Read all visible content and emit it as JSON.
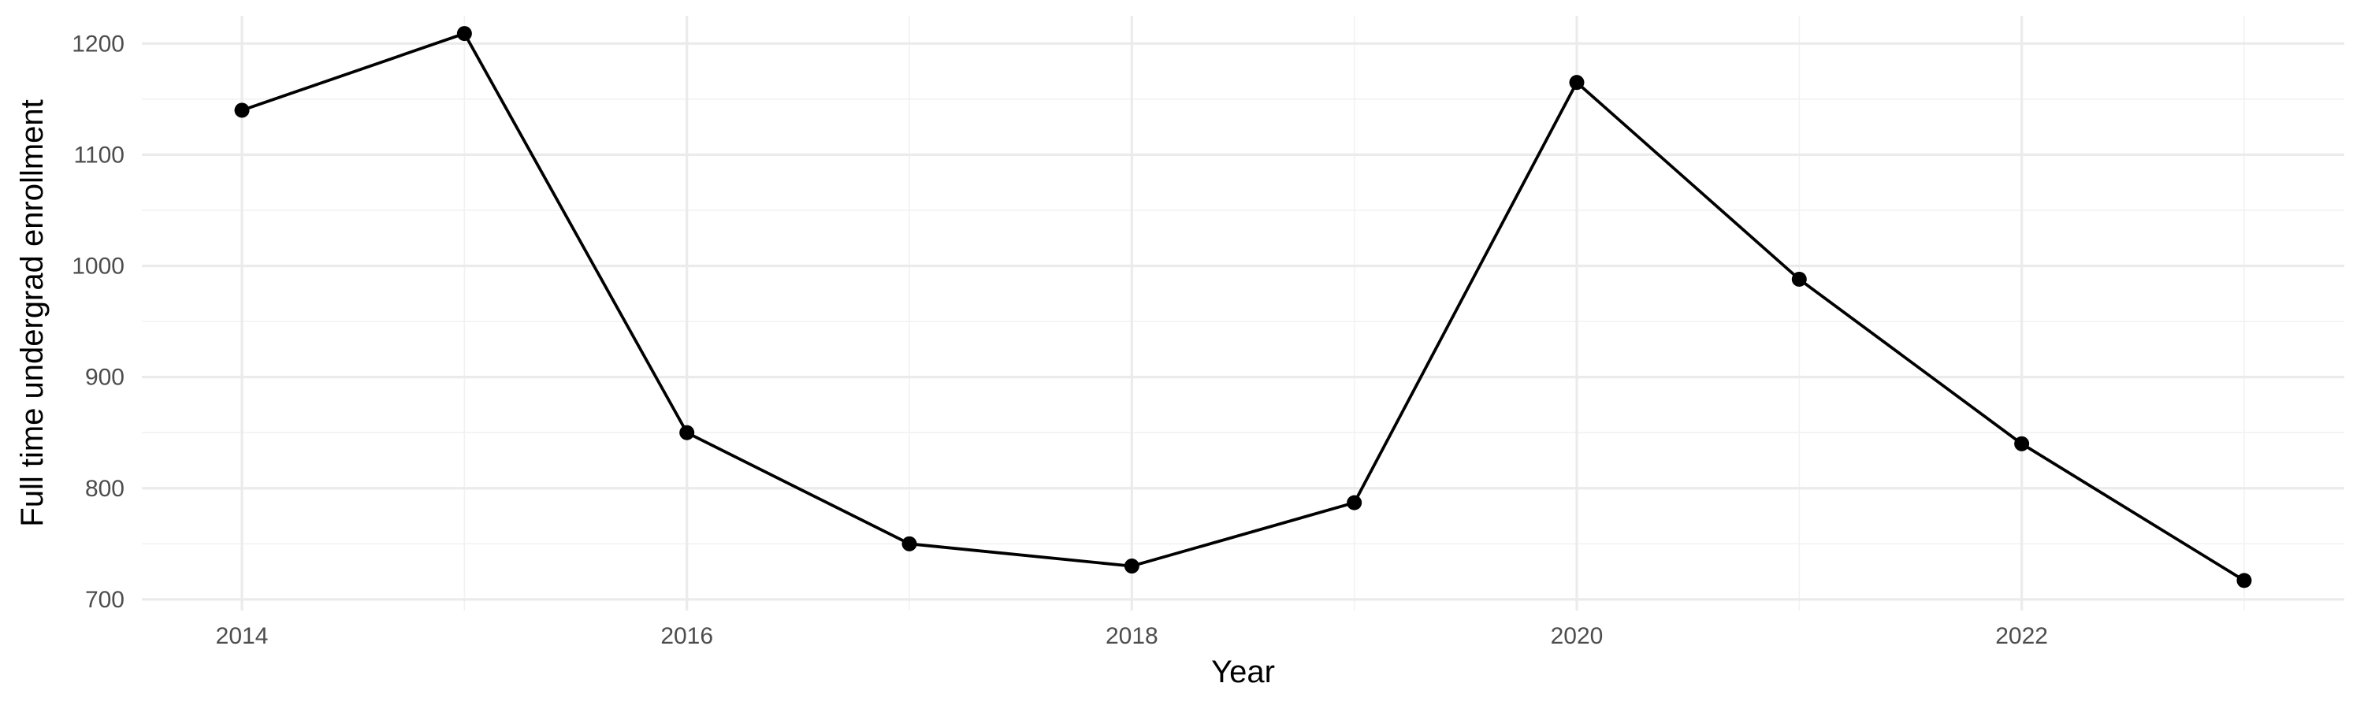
{
  "chart_data": {
    "type": "line",
    "title": "",
    "xlabel": "Year",
    "ylabel": "Full time undergrad enrollment",
    "x": [
      2014,
      2015,
      2016,
      2017,
      2018,
      2019,
      2020,
      2021,
      2022,
      2023
    ],
    "series": [
      {
        "values": [
          1140,
          1209,
          850,
          750,
          730,
          787,
          1165,
          988,
          840,
          717
        ]
      }
    ],
    "xlim": [
      2013.55,
      2023.45
    ],
    "ylim": [
      690,
      1225
    ],
    "x_ticks": [
      2014,
      2016,
      2018,
      2020,
      2022
    ],
    "x_minor_ticks": [
      2015,
      2017,
      2019,
      2021,
      2023
    ],
    "y_ticks": [
      700,
      800,
      900,
      1000,
      1100,
      1200
    ],
    "y_minor_ticks": [
      750,
      850,
      950,
      1050,
      1150
    ],
    "grid": true,
    "legend": "none",
    "colors": {
      "line": "#000000",
      "grid": "#ebebeb",
      "background": "#ffffff"
    }
  }
}
